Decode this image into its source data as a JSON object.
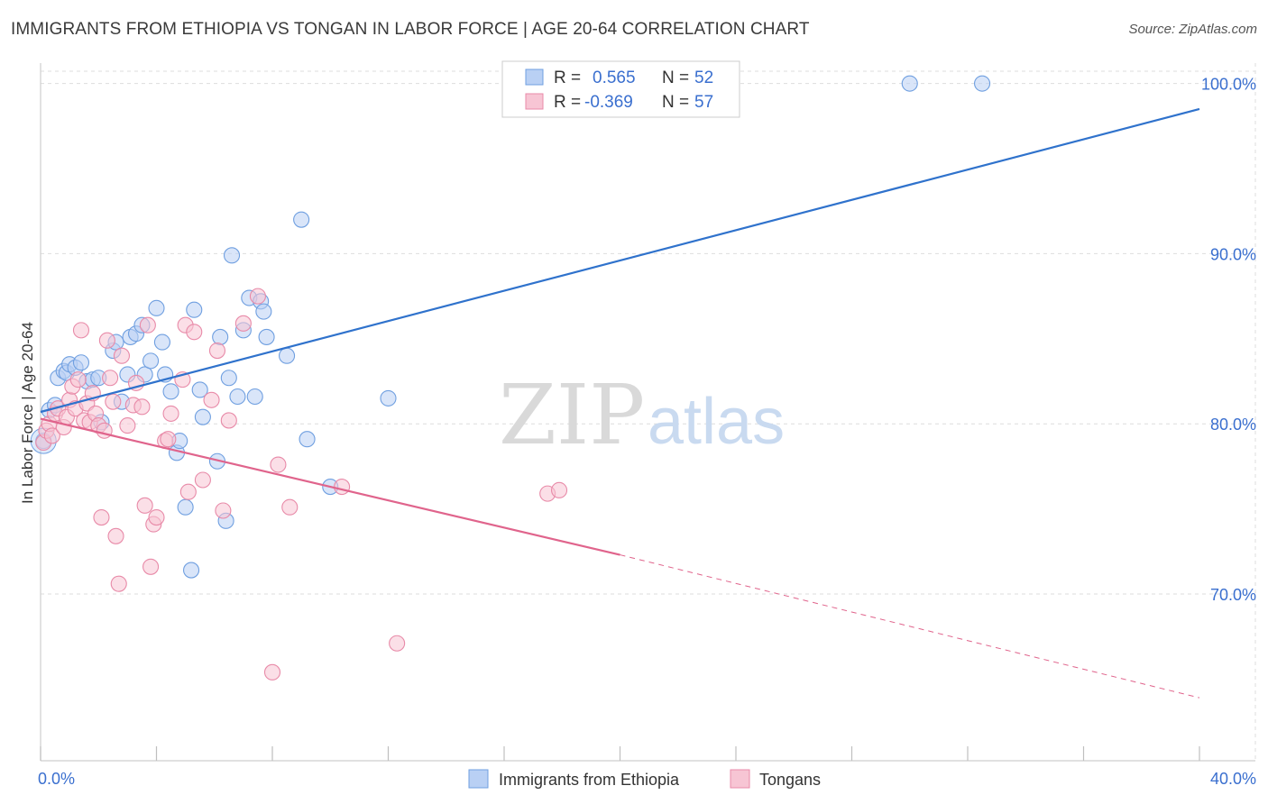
{
  "title": "IMMIGRANTS FROM ETHIOPIA VS TONGAN IN LABOR FORCE | AGE 20-64 CORRELATION CHART",
  "source": "Source: ZipAtlas.com",
  "watermark": {
    "zip": "ZIP",
    "atlas": "atlas"
  },
  "legend": {
    "r_label": "R =",
    "n_label": "N =",
    "rows": [
      {
        "r": "0.565",
        "n": "52",
        "color": "#6f9fe0",
        "fill": "#b9d0f4"
      },
      {
        "r": "-0.369",
        "n": "57",
        "color": "#e88aa8",
        "fill": "#f7c5d4"
      }
    ]
  },
  "bottom_legend": [
    "Immigrants from Ethiopia",
    "Tongans"
  ],
  "chart_data": {
    "type": "scatter",
    "title": "IMMIGRANTS FROM ETHIOPIA VS TONGAN IN LABOR FORCE | AGE 20-64 CORRELATION CHART",
    "xlabel": "",
    "ylabel": "In Labor Force | Age 20-64",
    "xlim": [
      0,
      40
    ],
    "ylim": [
      60.2,
      101.2
    ],
    "x_tick_labels": [
      "0.0%",
      "40.0%"
    ],
    "y_ticks": [
      70,
      80,
      90,
      100
    ],
    "y_tick_labels": [
      "70.0%",
      "80.0%",
      "90.0%",
      "100.0%"
    ],
    "series": [
      {
        "name": "Immigrants from Ethiopia",
        "color": "#6f9fe0",
        "fill": "#b9d0f4",
        "points": [
          [
            0.1,
            79.0
          ],
          [
            0.3,
            80.8
          ],
          [
            0.5,
            81.1
          ],
          [
            0.6,
            82.7
          ],
          [
            0.8,
            83.1
          ],
          [
            0.9,
            83.0
          ],
          [
            1.0,
            83.5
          ],
          [
            1.2,
            83.3
          ],
          [
            1.4,
            83.6
          ],
          [
            1.6,
            82.5
          ],
          [
            1.8,
            82.6
          ],
          [
            2.0,
            82.7
          ],
          [
            2.1,
            80.1
          ],
          [
            2.5,
            84.3
          ],
          [
            2.6,
            84.8
          ],
          [
            2.8,
            81.3
          ],
          [
            3.0,
            82.9
          ],
          [
            3.1,
            85.1
          ],
          [
            3.3,
            85.3
          ],
          [
            3.5,
            85.8
          ],
          [
            3.6,
            82.9
          ],
          [
            3.8,
            83.7
          ],
          [
            4.0,
            86.8
          ],
          [
            4.2,
            84.8
          ],
          [
            4.3,
            82.9
          ],
          [
            4.5,
            81.9
          ],
          [
            4.7,
            78.3
          ],
          [
            4.8,
            79.0
          ],
          [
            5.0,
            75.1
          ],
          [
            5.2,
            71.4
          ],
          [
            5.3,
            86.7
          ],
          [
            5.5,
            82.0
          ],
          [
            5.6,
            80.4
          ],
          [
            6.1,
            77.8
          ],
          [
            6.2,
            85.1
          ],
          [
            6.4,
            74.3
          ],
          [
            6.5,
            82.7
          ],
          [
            6.6,
            89.9
          ],
          [
            6.8,
            81.6
          ],
          [
            7.0,
            85.5
          ],
          [
            7.2,
            87.4
          ],
          [
            7.4,
            81.6
          ],
          [
            7.6,
            87.2
          ],
          [
            7.7,
            86.6
          ],
          [
            7.8,
            85.1
          ],
          [
            8.5,
            84.0
          ],
          [
            9.0,
            92.0
          ],
          [
            9.2,
            79.1
          ],
          [
            10.0,
            76.3
          ],
          [
            12.0,
            81.5
          ],
          [
            30.0,
            100.0
          ],
          [
            32.5,
            100.0
          ]
        ]
      },
      {
        "name": "Tongans",
        "color": "#e88aa8",
        "fill": "#f7c5d4",
        "points": [
          [
            0.1,
            78.9
          ],
          [
            0.2,
            79.6
          ],
          [
            0.3,
            80.0
          ],
          [
            0.4,
            79.3
          ],
          [
            0.5,
            80.6
          ],
          [
            0.6,
            80.9
          ],
          [
            0.8,
            79.8
          ],
          [
            0.9,
            80.4
          ],
          [
            1.0,
            81.4
          ],
          [
            1.1,
            82.2
          ],
          [
            1.2,
            80.9
          ],
          [
            1.3,
            82.6
          ],
          [
            1.4,
            85.5
          ],
          [
            1.5,
            80.2
          ],
          [
            1.6,
            81.2
          ],
          [
            1.7,
            80.1
          ],
          [
            1.8,
            81.8
          ],
          [
            1.9,
            80.6
          ],
          [
            2.0,
            79.9
          ],
          [
            2.1,
            74.5
          ],
          [
            2.2,
            79.6
          ],
          [
            2.3,
            84.9
          ],
          [
            2.4,
            82.7
          ],
          [
            2.5,
            81.3
          ],
          [
            2.6,
            73.4
          ],
          [
            2.7,
            70.6
          ],
          [
            2.8,
            84.0
          ],
          [
            3.0,
            79.9
          ],
          [
            3.2,
            81.1
          ],
          [
            3.3,
            82.4
          ],
          [
            3.5,
            81.0
          ],
          [
            3.6,
            75.2
          ],
          [
            3.7,
            85.8
          ],
          [
            3.8,
            71.6
          ],
          [
            3.9,
            74.1
          ],
          [
            4.0,
            74.5
          ],
          [
            4.3,
            79.0
          ],
          [
            4.4,
            79.1
          ],
          [
            4.5,
            80.6
          ],
          [
            4.9,
            82.6
          ],
          [
            5.0,
            85.8
          ],
          [
            5.1,
            76.0
          ],
          [
            5.3,
            85.4
          ],
          [
            5.6,
            76.7
          ],
          [
            5.9,
            81.4
          ],
          [
            6.1,
            84.3
          ],
          [
            6.3,
            74.9
          ],
          [
            6.5,
            80.2
          ],
          [
            7.0,
            85.9
          ],
          [
            7.5,
            87.5
          ],
          [
            8.0,
            65.4
          ],
          [
            8.2,
            77.6
          ],
          [
            8.6,
            75.1
          ],
          [
            10.4,
            76.3
          ],
          [
            12.3,
            67.1
          ],
          [
            17.5,
            75.9
          ],
          [
            17.9,
            76.1
          ]
        ]
      }
    ],
    "trend_lines": [
      {
        "series": "Immigrants from Ethiopia",
        "x": [
          0,
          40
        ],
        "y": [
          80.7,
          98.5
        ],
        "style": "solid"
      },
      {
        "series": "Tongans",
        "x": [
          0,
          20
        ],
        "y": [
          80.3,
          72.3
        ],
        "style": "solid"
      },
      {
        "series": "Tongans",
        "x": [
          20,
          40
        ],
        "y": [
          72.3,
          63.9
        ],
        "style": "dashed"
      }
    ]
  }
}
